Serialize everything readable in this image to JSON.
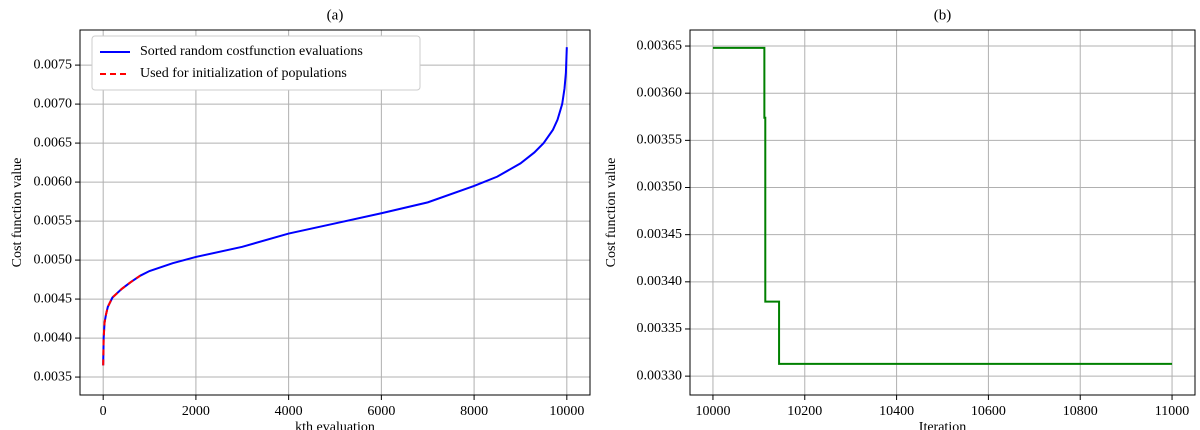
{
  "chart_data": [
    {
      "type": "line",
      "title": "(a)",
      "x_label": "kth evaluation",
      "y_label": "Cost function value",
      "xlim": [
        -500,
        10500
      ],
      "ylim": [
        0.00327,
        0.00795
      ],
      "xticks": [
        0,
        2000,
        4000,
        6000,
        8000,
        10000
      ],
      "yticks": [
        0.0035,
        {
          "value": 0.004,
          "label": "0.0040"
        },
        0.0045,
        {
          "value": 0.005,
          "label": "0.0050"
        },
        0.0055,
        {
          "value": 0.006,
          "label": "0.0060"
        },
        0.0065,
        {
          "value": 0.007,
          "label": "0.0070"
        },
        0.0075
      ],
      "grid": true,
      "legend": "upper left",
      "series": [
        {
          "name": "Sorted random costfunction evaluations",
          "color": "#0000ff",
          "linestyle": "solid",
          "x": [
            0,
            10,
            30,
            60,
            100,
            200,
            400,
            600,
            800,
            1000,
            1500,
            2000,
            3000,
            4000,
            5000,
            6000,
            7000,
            8000,
            8500,
            9000,
            9300,
            9500,
            9700,
            9800,
            9900,
            9950,
            9980,
            10000
          ],
          "values": [
            0.00365,
            0.004,
            0.0042,
            0.0043,
            0.0044,
            0.00452,
            0.00463,
            0.00472,
            0.0048,
            0.00486,
            0.00496,
            0.00504,
            0.00517,
            0.00534,
            0.00547,
            0.0056,
            0.00574,
            0.00595,
            0.00607,
            0.00624,
            0.00638,
            0.0065,
            0.00667,
            0.0068,
            0.007,
            0.0072,
            0.0074,
            0.00773
          ]
        },
        {
          "name": "Used for initialization of populations",
          "color": "#ff0000",
          "linestyle": "dashed",
          "x": [
            0,
            10,
            30,
            60,
            100,
            200,
            400,
            600,
            800
          ],
          "values": [
            0.00365,
            0.004,
            0.0042,
            0.0043,
            0.0044,
            0.00452,
            0.00463,
            0.00472,
            0.0048
          ]
        }
      ]
    },
    {
      "type": "line",
      "title": "(b)",
      "x_label": "Iteration",
      "y_label": "Cost function value",
      "xlim": [
        9950,
        11050
      ],
      "ylim": [
        0.00328,
        0.003667
      ],
      "xticks": [
        10000,
        10200,
        10400,
        10600,
        10800,
        11000
      ],
      "yticks": [
        {
          "value": 0.0033,
          "label": "0.00330"
        },
        0.00335,
        {
          "value": 0.0034,
          "label": "0.00340"
        },
        0.00345,
        {
          "value": 0.0035,
          "label": "0.00350"
        },
        0.00355,
        {
          "value": 0.0036,
          "label": "0.00360"
        },
        0.00365
      ],
      "grid": true,
      "series": [
        {
          "color": "#008000",
          "linestyle": "solid",
          "x": [
            10000,
            10112,
            10112,
            10114,
            10114,
            10144,
            10144,
            11000
          ],
          "values": [
            0.003648,
            0.003648,
            0.003574,
            0.003574,
            0.003379,
            0.003379,
            0.003313,
            0.003313
          ]
        }
      ]
    }
  ]
}
